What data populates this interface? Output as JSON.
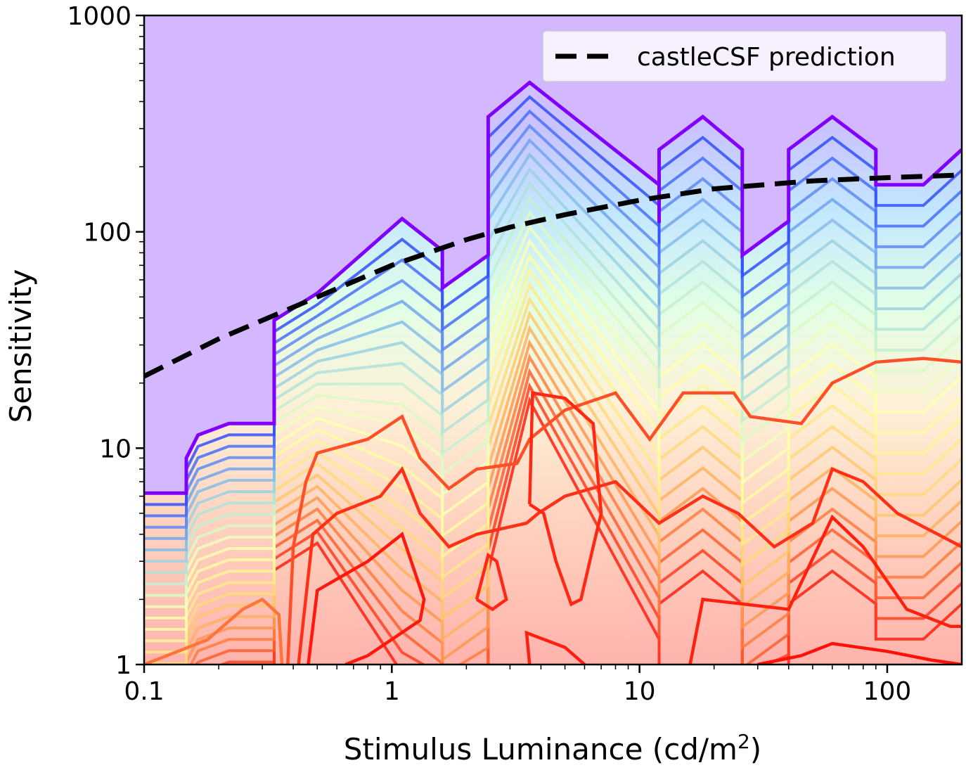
{
  "chart_data": {
    "type": "contour",
    "title": "",
    "xlabel": "Stimulus Luminance (cd/m",
    "xlabel_sup": "2",
    "xlabel_end": ")",
    "ylabel": "Sensitivity",
    "xscale": "log",
    "yscale": "log",
    "xlim": [
      0.1,
      200
    ],
    "ylim": [
      1,
      1000
    ],
    "xticks": [
      {
        "value": 0.1,
        "label": "0.1"
      },
      {
        "value": 1,
        "label": "1"
      },
      {
        "value": 10,
        "label": "10"
      },
      {
        "value": 100,
        "label": "100"
      }
    ],
    "yticks": [
      {
        "value": 1,
        "label": "1"
      },
      {
        "value": 10,
        "label": "10"
      },
      {
        "value": 100,
        "label": "100"
      },
      {
        "value": 1000,
        "label": "1000"
      }
    ],
    "legend": {
      "position": "top-right",
      "entries": [
        {
          "label": "castleCSF prediction",
          "style": "black dashed line"
        }
      ]
    },
    "colormap": "rainbow",
    "colors": {
      "background": "#d4b8ff",
      "outer_contour": "#8000ff",
      "prediction": "#000000"
    },
    "outer_contour": [
      [
        0.1,
        6.2
      ],
      [
        0.148,
        6.2
      ],
      [
        0.148,
        9
      ],
      [
        0.165,
        11.5
      ],
      [
        0.22,
        13
      ],
      [
        0.335,
        13
      ],
      [
        0.335,
        39
      ],
      [
        0.5,
        52
      ],
      [
        1.1,
        115
      ],
      [
        1.6,
        82
      ],
      [
        1.6,
        55
      ],
      [
        2.45,
        78
      ],
      [
        2.45,
        340
      ],
      [
        3.6,
        490
      ],
      [
        12,
        165
      ],
      [
        12,
        110
      ],
      [
        12,
        240
      ],
      [
        18,
        340
      ],
      [
        26,
        240
      ],
      [
        26,
        78
      ],
      [
        40,
        112
      ],
      [
        40,
        240
      ],
      [
        60,
        340
      ],
      [
        90,
        240
      ],
      [
        90,
        165
      ],
      [
        140,
        165
      ],
      [
        200,
        240
      ]
    ],
    "prediction": {
      "name": "castleCSF prediction",
      "x": [
        0.1,
        0.2,
        0.35,
        0.5,
        1,
        2,
        3,
        5,
        10,
        20,
        50,
        100,
        200
      ],
      "y": [
        21.5,
        32,
        42,
        50,
        70,
        92,
        105,
        120,
        140,
        158,
        172,
        178,
        183
      ]
    },
    "inner_contours": [
      {
        "level": 0.85,
        "points": [
          [
            0.1,
            1
          ],
          [
            0.18,
            1.3
          ],
          [
            0.25,
            1.8
          ],
          [
            0.3,
            2.0
          ],
          [
            0.35,
            1.7
          ],
          [
            0.36,
            1
          ]
        ]
      },
      {
        "level": 0.9,
        "points": [
          [
            0.38,
            1
          ],
          [
            0.4,
            3.5
          ],
          [
            0.45,
            7
          ],
          [
            0.5,
            9.5
          ],
          [
            0.8,
            11
          ],
          [
            1.1,
            14
          ],
          [
            1.3,
            9
          ],
          [
            1.7,
            6.5
          ],
          [
            2.2,
            8
          ],
          [
            3.2,
            8.5
          ],
          [
            3.6,
            11
          ],
          [
            5,
            15
          ],
          [
            8,
            18
          ],
          [
            11,
            11
          ],
          [
            15,
            18
          ],
          [
            24,
            18
          ],
          [
            28,
            14
          ],
          [
            45,
            13
          ],
          [
            60,
            20
          ],
          [
            90,
            25
          ],
          [
            140,
            26
          ],
          [
            200,
            25
          ]
        ]
      },
      {
        "level": 0.94,
        "points": [
          [
            0.42,
            1
          ],
          [
            0.48,
            4
          ],
          [
            0.6,
            5
          ],
          [
            0.9,
            6
          ],
          [
            1.1,
            8
          ],
          [
            1.3,
            5
          ],
          [
            1.7,
            3.5
          ],
          [
            2.2,
            4
          ],
          [
            3.5,
            4.5
          ],
          [
            3.9,
            5
          ],
          [
            5,
            6
          ],
          [
            8,
            7
          ],
          [
            12,
            4.5
          ],
          [
            18,
            6
          ],
          [
            25,
            5
          ],
          [
            35,
            3.5
          ],
          [
            50,
            4.5
          ],
          [
            60,
            8
          ],
          [
            80,
            7
          ],
          [
            110,
            5
          ],
          [
            160,
            4
          ],
          [
            200,
            3.5
          ]
        ]
      },
      {
        "level": 0.97,
        "points": [
          [
            0.46,
            1
          ],
          [
            0.5,
            2.2
          ],
          [
            0.8,
            3
          ],
          [
            1.1,
            4
          ],
          [
            1.35,
            2
          ],
          [
            1.3,
            1.6
          ],
          [
            0.8,
            1.1
          ],
          [
            0.65,
            1
          ]
        ]
      },
      {
        "level": 0.95,
        "points": [
          [
            3.6,
            5.5
          ],
          [
            3.7,
            18
          ],
          [
            5,
            17
          ],
          [
            6.5,
            13
          ],
          [
            7,
            5
          ],
          [
            6.5,
            3.5
          ],
          [
            5.8,
            2
          ],
          [
            5.3,
            1.9
          ],
          [
            4.6,
            3
          ],
          [
            4.1,
            5
          ],
          [
            3.6,
            5.5
          ]
        ]
      },
      {
        "level": 0.95,
        "points": [
          [
            2.2,
            2
          ],
          [
            2.45,
            3.2
          ],
          [
            2.65,
            3
          ],
          [
            2.9,
            2
          ],
          [
            2.55,
            1.8
          ],
          [
            2.2,
            2
          ]
        ]
      },
      {
        "level": 0.96,
        "points": [
          [
            16,
            1
          ],
          [
            18,
            2
          ],
          [
            40,
            1.8
          ],
          [
            60,
            4.8
          ],
          [
            80,
            3.5
          ],
          [
            120,
            1.8
          ],
          [
            180,
            1.5
          ],
          [
            200,
            1.5
          ]
        ]
      },
      {
        "level": 0.98,
        "points": [
          [
            30,
            1
          ],
          [
            45,
            1.1
          ],
          [
            60,
            1.25
          ],
          [
            100,
            1.15
          ],
          [
            150,
            1.05
          ],
          [
            200,
            1
          ]
        ]
      },
      {
        "level": 0.96,
        "points": [
          [
            3.6,
            1
          ],
          [
            3.5,
            1.4
          ],
          [
            5,
            1.2
          ],
          [
            6,
            1
          ]
        ]
      }
    ]
  }
}
